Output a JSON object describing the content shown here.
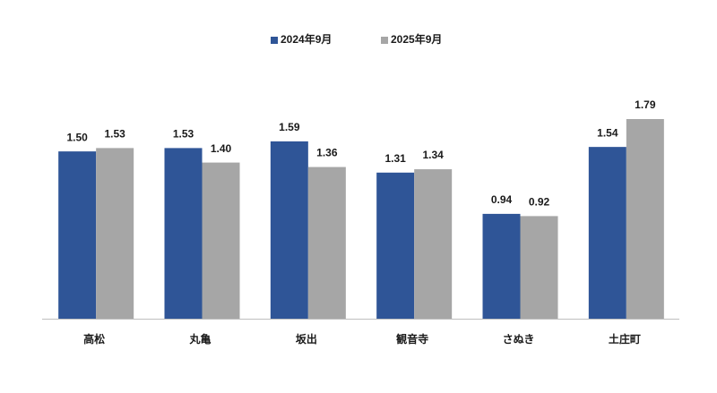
{
  "chart_data": {
    "type": "bar",
    "categories": [
      "高松",
      "丸亀",
      "坂出",
      "観音寺",
      "さぬき",
      "土庄町"
    ],
    "series": [
      {
        "name": "2024年9月",
        "color": "#2f5597",
        "values": [
          1.5,
          1.53,
          1.59,
          1.31,
          0.94,
          1.54
        ],
        "value_labels": [
          "1.50",
          "1.53",
          "1.59",
          "1.31",
          "0.94",
          "1.54"
        ]
      },
      {
        "name": "2025年9月",
        "color": "#a6a6a6",
        "values": [
          1.53,
          1.4,
          1.36,
          1.34,
          0.92,
          1.79
        ],
        "value_labels": [
          "1.53",
          "1.40",
          "1.36",
          "1.34",
          "0.92",
          "1.79"
        ]
      }
    ],
    "legend": "top"
  }
}
